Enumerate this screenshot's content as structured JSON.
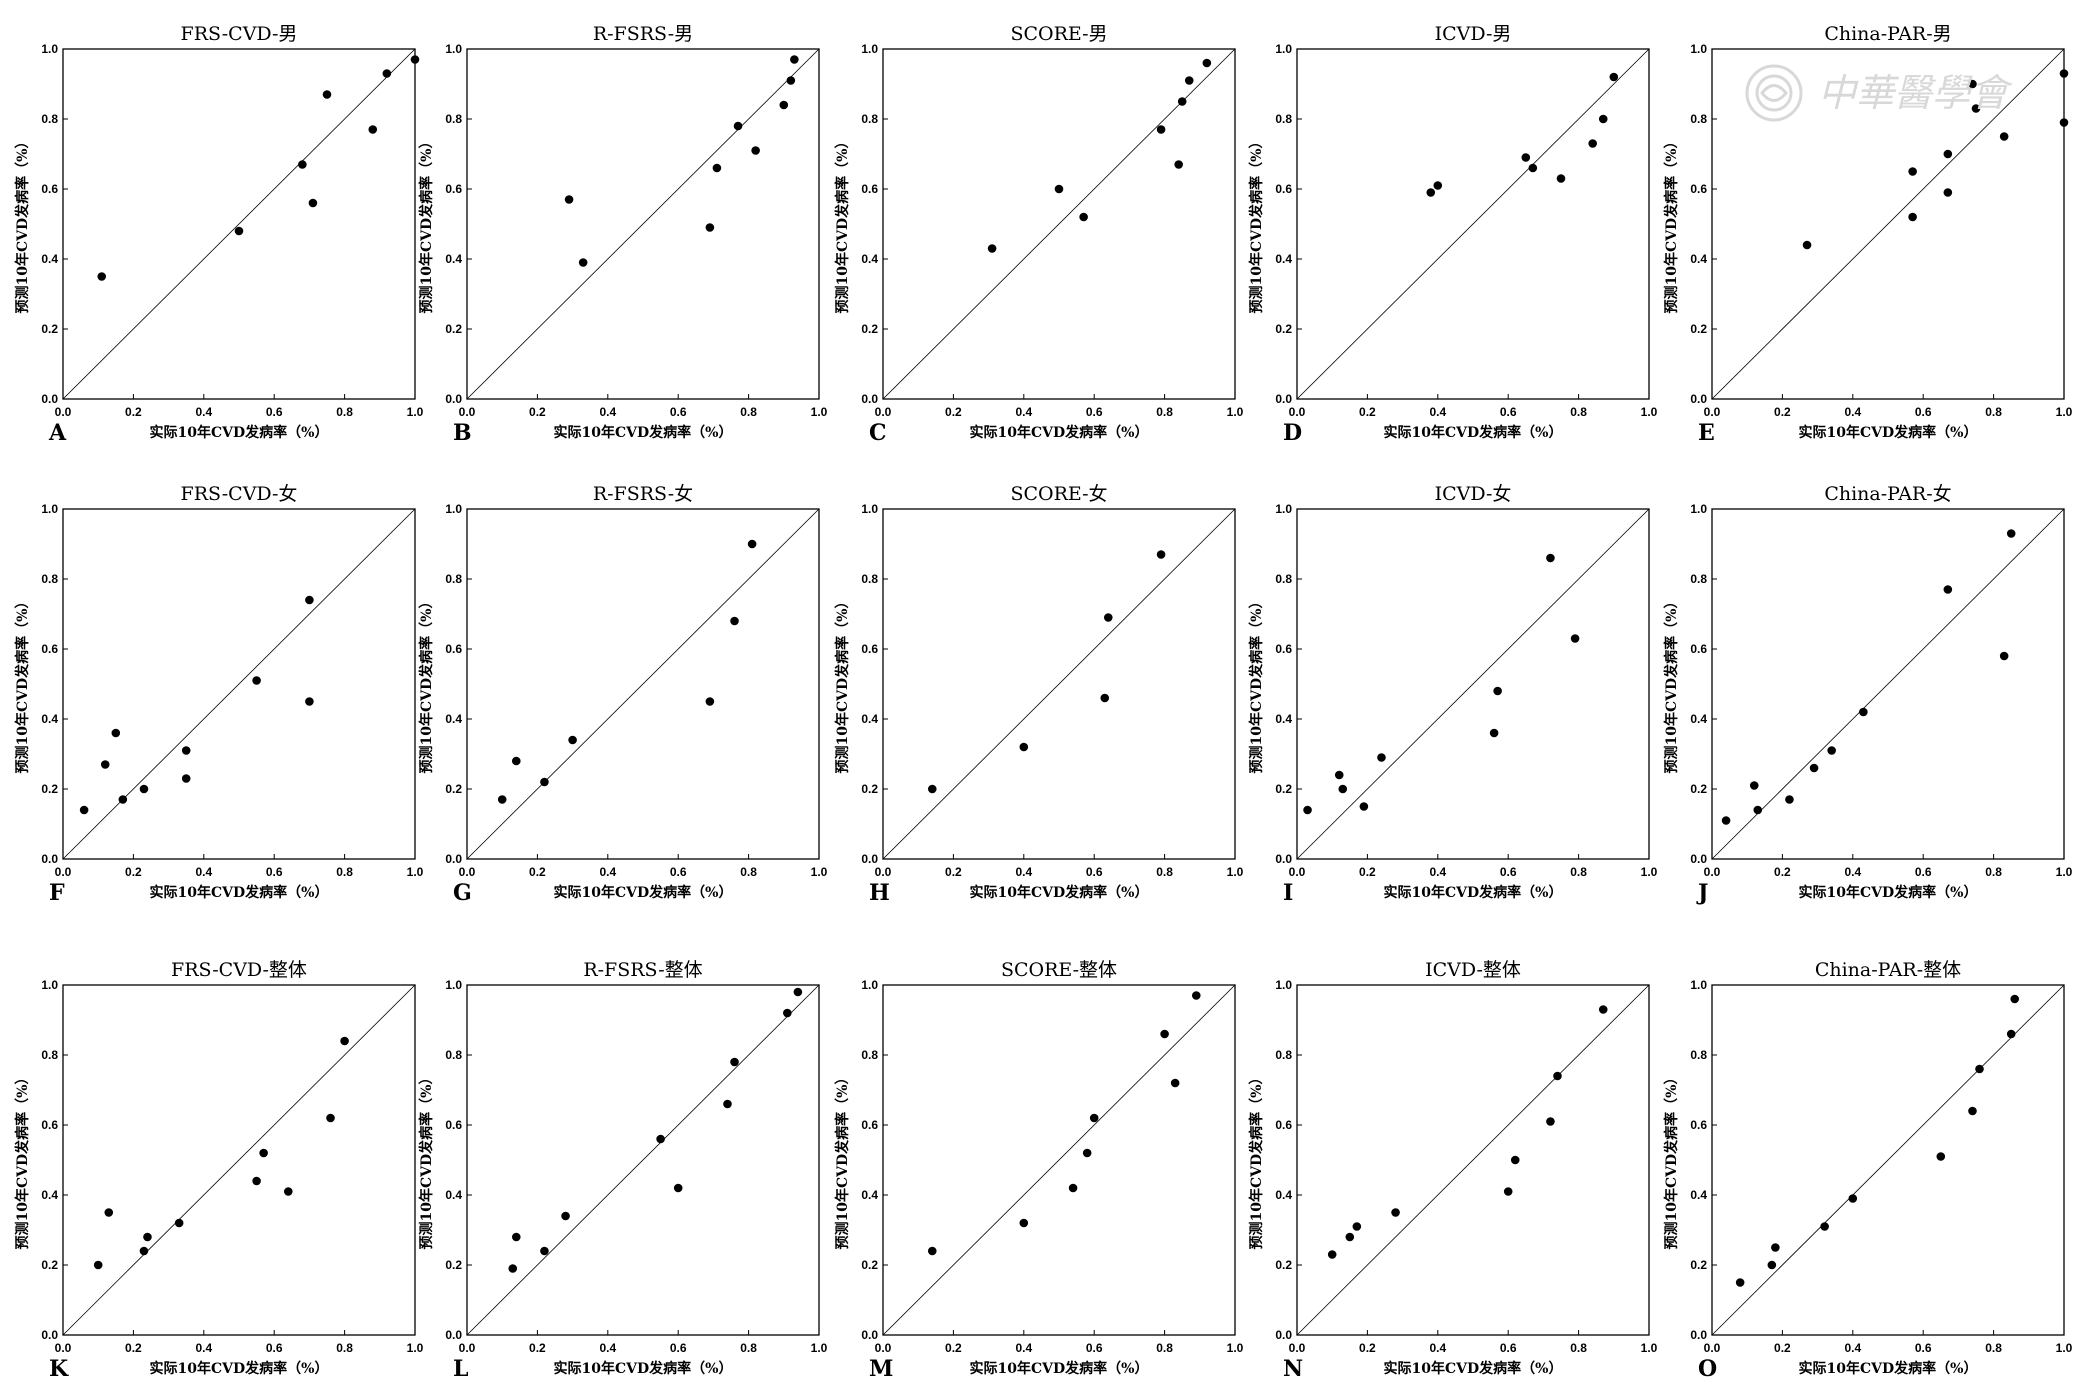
{
  "watermark": {
    "text": "中華醫學會",
    "color": "#d8d8d8"
  },
  "style": {
    "marker_color": "#000000",
    "diagonal_color": "#000000"
  },
  "chart_data": [
    {
      "letter": "A",
      "title": "FRS-CVD-男",
      "type": "scatter",
      "xlabel": "实际10年CVD发病率（%）",
      "ylabel": "预测10年CVD发病率（%）",
      "xlim": [
        0,
        1
      ],
      "ylim": [
        0,
        1
      ],
      "xticks": [
        "0.0",
        "0.2",
        "0.4",
        "0.6",
        "0.8",
        "1.0"
      ],
      "yticks": [
        "0.0",
        "0.2",
        "0.4",
        "0.6",
        "0.8",
        "1.0"
      ],
      "reference_line": "y=x",
      "points": [
        [
          0.11,
          0.35
        ],
        [
          0.5,
          0.48
        ],
        [
          0.68,
          0.67
        ],
        [
          0.71,
          0.56
        ],
        [
          0.75,
          0.87
        ],
        [
          0.88,
          0.77
        ],
        [
          0.92,
          0.93
        ],
        [
          1.0,
          0.97
        ]
      ]
    },
    {
      "letter": "B",
      "title": "R-FSRS-男",
      "type": "scatter",
      "xlabel": "实际10年CVD发病率（%）",
      "ylabel": "预测10年CVD发病率（%）",
      "xlim": [
        0,
        1
      ],
      "ylim": [
        0,
        1
      ],
      "xticks": [
        "0.0",
        "0.2",
        "0.4",
        "0.6",
        "0.8",
        "1.0"
      ],
      "yticks": [
        "0.0",
        "0.2",
        "0.4",
        "0.6",
        "0.8",
        "1.0"
      ],
      "reference_line": "y=x",
      "points": [
        [
          0.29,
          0.57
        ],
        [
          0.33,
          0.39
        ],
        [
          0.69,
          0.49
        ],
        [
          0.71,
          0.66
        ],
        [
          0.77,
          0.78
        ],
        [
          0.82,
          0.71
        ],
        [
          0.9,
          0.84
        ],
        [
          0.92,
          0.91
        ],
        [
          0.93,
          0.97
        ]
      ]
    },
    {
      "letter": "C",
      "title": "SCORE-男",
      "type": "scatter",
      "xlabel": "实际10年CVD发病率（%）",
      "ylabel": "预测10年CVD发病率（%）",
      "xlim": [
        0,
        1
      ],
      "ylim": [
        0,
        1
      ],
      "xticks": [
        "0.0",
        "0.2",
        "0.4",
        "0.6",
        "0.8",
        "1.0"
      ],
      "yticks": [
        "0.0",
        "0.2",
        "0.4",
        "0.6",
        "0.8",
        "1.0"
      ],
      "reference_line": "y=x",
      "points": [
        [
          0.31,
          0.43
        ],
        [
          0.5,
          0.6
        ],
        [
          0.57,
          0.52
        ],
        [
          0.79,
          0.77
        ],
        [
          0.84,
          0.67
        ],
        [
          0.85,
          0.85
        ],
        [
          0.87,
          0.91
        ],
        [
          0.92,
          0.96
        ]
      ]
    },
    {
      "letter": "D",
      "title": "ICVD-男",
      "type": "scatter",
      "xlabel": "实际10年CVD发病率（%）",
      "ylabel": "预测10年CVD发病率（%）",
      "xlim": [
        0,
        1
      ],
      "ylim": [
        0,
        1
      ],
      "xticks": [
        "0.0",
        "0.2",
        "0.4",
        "0.6",
        "0.8",
        "1.0"
      ],
      "yticks": [
        "0.0",
        "0.2",
        "0.4",
        "0.6",
        "0.8",
        "1.0"
      ],
      "reference_line": "y=x",
      "points": [
        [
          0.38,
          0.59
        ],
        [
          0.4,
          0.61
        ],
        [
          0.65,
          0.69
        ],
        [
          0.67,
          0.66
        ],
        [
          0.75,
          0.63
        ],
        [
          0.84,
          0.73
        ],
        [
          0.87,
          0.8
        ],
        [
          0.9,
          0.92
        ]
      ]
    },
    {
      "letter": "E",
      "title": "China-PAR-男",
      "type": "scatter",
      "xlabel": "实际10年CVD发病率（%）",
      "ylabel": "预测10年CVD发病率（%）",
      "xlim": [
        0,
        1
      ],
      "ylim": [
        0,
        1
      ],
      "xticks": [
        "0.0",
        "0.2",
        "0.4",
        "0.6",
        "0.8",
        "1.0"
      ],
      "yticks": [
        "0.0",
        "0.2",
        "0.4",
        "0.6",
        "0.8",
        "1.0"
      ],
      "reference_line": "y=x",
      "points": [
        [
          0.27,
          0.44
        ],
        [
          0.57,
          0.52
        ],
        [
          0.57,
          0.65
        ],
        [
          0.67,
          0.59
        ],
        [
          0.67,
          0.7
        ],
        [
          0.74,
          0.9
        ],
        [
          0.75,
          0.83
        ],
        [
          0.83,
          0.75
        ],
        [
          1.0,
          0.93
        ],
        [
          1.0,
          0.79
        ]
      ]
    },
    {
      "letter": "F",
      "title": "FRS-CVD-女",
      "type": "scatter",
      "xlabel": "实际10年CVD发病率（%）",
      "ylabel": "预测10年CVD发病率（%）",
      "xlim": [
        0,
        1
      ],
      "ylim": [
        0,
        1
      ],
      "xticks": [
        "0.0",
        "0.2",
        "0.4",
        "0.6",
        "0.8",
        "1.0"
      ],
      "yticks": [
        "0.0",
        "0.2",
        "0.4",
        "0.6",
        "0.8",
        "1.0"
      ],
      "reference_line": "y=x",
      "points": [
        [
          0.06,
          0.14
        ],
        [
          0.12,
          0.27
        ],
        [
          0.15,
          0.36
        ],
        [
          0.17,
          0.17
        ],
        [
          0.23,
          0.2
        ],
        [
          0.35,
          0.31
        ],
        [
          0.35,
          0.23
        ],
        [
          0.55,
          0.51
        ],
        [
          0.7,
          0.74
        ],
        [
          0.7,
          0.45
        ]
      ]
    },
    {
      "letter": "G",
      "title": "R-FSRS-女",
      "type": "scatter",
      "xlabel": "实际10年CVD发病率（%）",
      "ylabel": "预测10年CVD发病率（%）",
      "xlim": [
        0,
        1
      ],
      "ylim": [
        0,
        1
      ],
      "xticks": [
        "0.0",
        "0.2",
        "0.4",
        "0.6",
        "0.8",
        "1.0"
      ],
      "yticks": [
        "0.0",
        "0.2",
        "0.4",
        "0.6",
        "0.8",
        "1.0"
      ],
      "reference_line": "y=x",
      "points": [
        [
          0.1,
          0.17
        ],
        [
          0.14,
          0.28
        ],
        [
          0.22,
          0.22
        ],
        [
          0.3,
          0.34
        ],
        [
          0.69,
          0.45
        ],
        [
          0.76,
          0.68
        ],
        [
          0.81,
          0.9
        ]
      ]
    },
    {
      "letter": "H",
      "title": "SCORE-女",
      "type": "scatter",
      "xlabel": "实际10年CVD发病率（%）",
      "ylabel": "预测10年CVD发病率（%）",
      "xlim": [
        0,
        1
      ],
      "ylim": [
        0,
        1
      ],
      "xticks": [
        "0.0",
        "0.2",
        "0.4",
        "0.6",
        "0.8",
        "1.0"
      ],
      "yticks": [
        "0.0",
        "0.2",
        "0.4",
        "0.6",
        "0.8",
        "1.0"
      ],
      "reference_line": "y=x",
      "points": [
        [
          0.14,
          0.2
        ],
        [
          0.4,
          0.32
        ],
        [
          0.63,
          0.46
        ],
        [
          0.64,
          0.69
        ],
        [
          0.79,
          0.87
        ]
      ]
    },
    {
      "letter": "I",
      "title": "ICVD-女",
      "type": "scatter",
      "xlabel": "实际10年CVD发病率（%）",
      "ylabel": "预测10年CVD发病率（%）",
      "xlim": [
        0,
        1
      ],
      "ylim": [
        0,
        1
      ],
      "xticks": [
        "0.0",
        "0.2",
        "0.4",
        "0.6",
        "0.8",
        "1.0"
      ],
      "yticks": [
        "0.0",
        "0.2",
        "0.4",
        "0.6",
        "0.8",
        "1.0"
      ],
      "reference_line": "y=x",
      "points": [
        [
          0.03,
          0.14
        ],
        [
          0.12,
          0.24
        ],
        [
          0.13,
          0.2
        ],
        [
          0.19,
          0.15
        ],
        [
          0.24,
          0.29
        ],
        [
          0.56,
          0.36
        ],
        [
          0.57,
          0.48
        ],
        [
          0.72,
          0.86
        ],
        [
          0.79,
          0.63
        ]
      ]
    },
    {
      "letter": "J",
      "title": "China-PAR-女",
      "type": "scatter",
      "xlabel": "实际10年CVD发病率（%）",
      "ylabel": "预测10年CVD发病率（%）",
      "xlim": [
        0,
        1
      ],
      "ylim": [
        0,
        1
      ],
      "xticks": [
        "0.0",
        "0.2",
        "0.4",
        "0.6",
        "0.8",
        "1.0"
      ],
      "yticks": [
        "0.0",
        "0.2",
        "0.4",
        "0.6",
        "0.8",
        "1.0"
      ],
      "reference_line": "y=x",
      "points": [
        [
          0.04,
          0.11
        ],
        [
          0.12,
          0.21
        ],
        [
          0.13,
          0.14
        ],
        [
          0.22,
          0.17
        ],
        [
          0.29,
          0.26
        ],
        [
          0.34,
          0.31
        ],
        [
          0.43,
          0.42
        ],
        [
          0.67,
          0.77
        ],
        [
          0.83,
          0.58
        ],
        [
          0.85,
          0.93
        ]
      ]
    },
    {
      "letter": "K",
      "title": "FRS-CVD-整体",
      "type": "scatter",
      "xlabel": "实际10年CVD发病率（%）",
      "ylabel": "预测10年CVD发病率（%）",
      "xlim": [
        0,
        1
      ],
      "ylim": [
        0,
        1
      ],
      "xticks": [
        "0.0",
        "0.2",
        "0.4",
        "0.6",
        "0.8",
        "1.0"
      ],
      "yticks": [
        "0.0",
        "0.2",
        "0.4",
        "0.6",
        "0.8",
        "1.0"
      ],
      "reference_line": "y=x",
      "points": [
        [
          0.1,
          0.2
        ],
        [
          0.13,
          0.35
        ],
        [
          0.23,
          0.24
        ],
        [
          0.24,
          0.28
        ],
        [
          0.33,
          0.32
        ],
        [
          0.55,
          0.44
        ],
        [
          0.57,
          0.52
        ],
        [
          0.64,
          0.41
        ],
        [
          0.76,
          0.62
        ],
        [
          0.8,
          0.84
        ]
      ]
    },
    {
      "letter": "L",
      "title": "R-FSRS-整体",
      "type": "scatter",
      "xlabel": "实际10年CVD发病率（%）",
      "ylabel": "预测10年CVD发病率（%）",
      "xlim": [
        0,
        1
      ],
      "ylim": [
        0,
        1
      ],
      "xticks": [
        "0.0",
        "0.2",
        "0.4",
        "0.6",
        "0.8",
        "1.0"
      ],
      "yticks": [
        "0.0",
        "0.2",
        "0.4",
        "0.6",
        "0.8",
        "1.0"
      ],
      "reference_line": "y=x",
      "points": [
        [
          0.13,
          0.19
        ],
        [
          0.14,
          0.28
        ],
        [
          0.22,
          0.24
        ],
        [
          0.28,
          0.34
        ],
        [
          0.55,
          0.56
        ],
        [
          0.6,
          0.42
        ],
        [
          0.74,
          0.66
        ],
        [
          0.76,
          0.78
        ],
        [
          0.91,
          0.92
        ],
        [
          0.94,
          0.98
        ]
      ]
    },
    {
      "letter": "M",
      "title": "SCORE-整体",
      "type": "scatter",
      "xlabel": "实际10年CVD发病率（%）",
      "ylabel": "预测10年CVD发病率（%）",
      "xlim": [
        0,
        1
      ],
      "ylim": [
        0,
        1
      ],
      "xticks": [
        "0.0",
        "0.2",
        "0.4",
        "0.6",
        "0.8",
        "1.0"
      ],
      "yticks": [
        "0.0",
        "0.2",
        "0.4",
        "0.6",
        "0.8",
        "1.0"
      ],
      "reference_line": "y=x",
      "points": [
        [
          0.14,
          0.24
        ],
        [
          0.4,
          0.32
        ],
        [
          0.54,
          0.42
        ],
        [
          0.58,
          0.52
        ],
        [
          0.6,
          0.62
        ],
        [
          0.8,
          0.86
        ],
        [
          0.83,
          0.72
        ],
        [
          0.89,
          0.97
        ]
      ]
    },
    {
      "letter": "N",
      "title": "ICVD-整体",
      "type": "scatter",
      "xlabel": "实际10年CVD发病率（%）",
      "ylabel": "预测10年CVD发病率（%）",
      "xlim": [
        0,
        1
      ],
      "ylim": [
        0,
        1
      ],
      "xticks": [
        "0.0",
        "0.2",
        "0.4",
        "0.6",
        "0.8",
        "1.0"
      ],
      "yticks": [
        "0.0",
        "0.2",
        "0.4",
        "0.6",
        "0.8",
        "1.0"
      ],
      "reference_line": "y=x",
      "points": [
        [
          0.1,
          0.23
        ],
        [
          0.15,
          0.28
        ],
        [
          0.17,
          0.31
        ],
        [
          0.28,
          0.35
        ],
        [
          0.6,
          0.41
        ],
        [
          0.62,
          0.5
        ],
        [
          0.72,
          0.61
        ],
        [
          0.74,
          0.74
        ],
        [
          0.87,
          0.93
        ]
      ]
    },
    {
      "letter": "O",
      "title": "China-PAR-整体",
      "type": "scatter",
      "xlabel": "实际10年CVD发病率（%）",
      "ylabel": "预测10年CVD发病率（%）",
      "xlim": [
        0,
        1
      ],
      "ylim": [
        0,
        1
      ],
      "xticks": [
        "0.0",
        "0.2",
        "0.4",
        "0.6",
        "0.8",
        "1.0"
      ],
      "yticks": [
        "0.0",
        "0.2",
        "0.4",
        "0.6",
        "0.8",
        "1.0"
      ],
      "reference_line": "y=x",
      "points": [
        [
          0.08,
          0.15
        ],
        [
          0.17,
          0.2
        ],
        [
          0.18,
          0.25
        ],
        [
          0.32,
          0.31
        ],
        [
          0.4,
          0.39
        ],
        [
          0.65,
          0.51
        ],
        [
          0.74,
          0.64
        ],
        [
          0.76,
          0.76
        ],
        [
          0.85,
          0.86
        ],
        [
          0.86,
          0.96
        ]
      ]
    }
  ]
}
